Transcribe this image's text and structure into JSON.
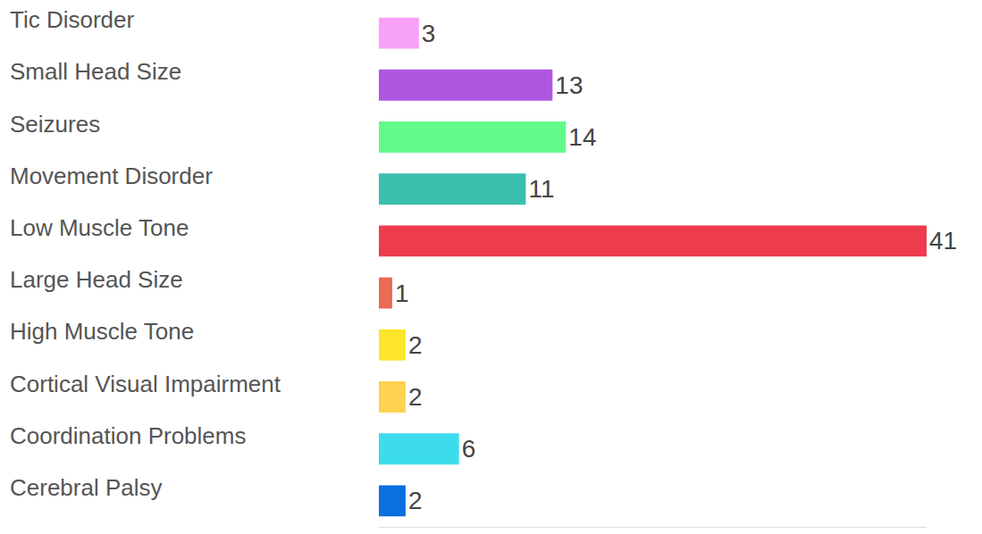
{
  "chart_data": {
    "type": "bar",
    "orientation": "horizontal",
    "categories": [
      "Tic Disorder",
      "Small Head Size",
      "Seizures",
      "Movement Disorder",
      "Low Muscle Tone",
      "Large Head Size",
      "High Muscle Tone",
      "Cortical Visual Impairment",
      "Coordination Problems",
      "Cerebral Palsy"
    ],
    "values": [
      3,
      13,
      14,
      11,
      41,
      1,
      2,
      2,
      6,
      2
    ],
    "colors": [
      "#f7a1f7",
      "#b057df",
      "#63fa8c",
      "#3bbfad",
      "#ef3c4d",
      "#ec6a52",
      "#fde52b",
      "#ffd24f",
      "#3ddcec",
      "#0b6fe0"
    ],
    "xlim": [
      0,
      41
    ],
    "data_labels": true,
    "tick_labels": "y",
    "grid": false
  }
}
